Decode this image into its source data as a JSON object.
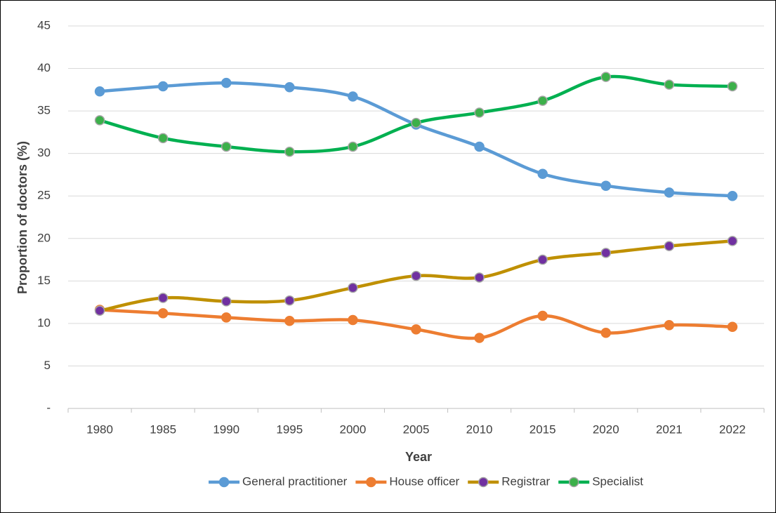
{
  "chart_data": {
    "type": "line",
    "smooth": true,
    "x_label": "Year",
    "y_label": "Proportion of doctors (%)",
    "categories": [
      "1980",
      "1985",
      "1990",
      "1995",
      "2000",
      "2005",
      "2010",
      "2015",
      "2020",
      "2021",
      "2022"
    ],
    "series": [
      {
        "name": "General practitioner",
        "color": "#5b9bd5",
        "marker_color": "#5b9bd5",
        "values": [
          37.3,
          37.9,
          38.3,
          37.8,
          36.7,
          33.4,
          30.8,
          27.6,
          26.2,
          25.4,
          25.0
        ]
      },
      {
        "name": "House officer",
        "color": "#ed7d31",
        "marker_color": "#ed7d31",
        "values": [
          11.6,
          11.2,
          10.7,
          10.3,
          10.4,
          9.3,
          8.3,
          10.9,
          8.9,
          9.8,
          9.6
        ]
      },
      {
        "name": "Registrar",
        "color": "#bf9000",
        "marker_color": "#7030a0",
        "values": [
          11.5,
          13.0,
          12.6,
          12.7,
          14.2,
          15.6,
          15.4,
          17.5,
          18.3,
          19.1,
          19.7
        ]
      },
      {
        "name": "Specialist",
        "color": "#00b050",
        "marker_color": "#3cb04a",
        "values": [
          33.9,
          31.8,
          30.8,
          30.2,
          30.8,
          33.6,
          34.8,
          36.2,
          39.0,
          38.1,
          37.9
        ]
      }
    ],
    "ylim": [
      0,
      45
    ],
    "yticks": [
      {
        "value": 0,
        "label": "-"
      },
      5,
      10,
      15,
      20,
      25,
      30,
      35,
      40,
      45
    ],
    "grid": true,
    "legend": "bottom"
  }
}
